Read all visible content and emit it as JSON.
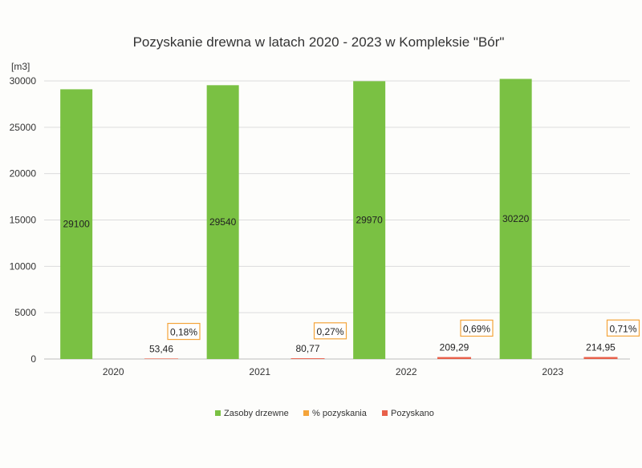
{
  "chart_data": {
    "type": "bar",
    "title": "Pozyskanie drewna w latach 2020 - 2023 w Kompleksie \"Bór\"",
    "unit_label": "[m3]",
    "categories": [
      "2020",
      "2021",
      "2022",
      "2023"
    ],
    "ylim": [
      0,
      30000
    ],
    "yticks": [
      "0",
      "5000",
      "10000",
      "15000",
      "20000",
      "25000",
      "30000"
    ],
    "grid": true,
    "legend_position": "bottom",
    "series": [
      {
        "name": "Zasoby drzewne",
        "color": "#7ac143",
        "values": [
          29100,
          29540,
          29970,
          30220
        ],
        "labels": [
          "29100",
          "29540",
          "29970",
          "30220"
        ]
      },
      {
        "name": "% pozyskania",
        "color": "#f4a43a",
        "values": [
          0.18,
          0.27,
          0.69,
          0.71
        ],
        "labels": [
          "0,18%",
          "0,27%",
          "0,69%",
          "0,71%"
        ]
      },
      {
        "name": "Pozyskano",
        "color": "#e8604a",
        "values": [
          53.46,
          80.77,
          209.29,
          214.95
        ],
        "labels": [
          "53,46",
          "80,77",
          "209,29",
          "214,95"
        ]
      }
    ]
  }
}
